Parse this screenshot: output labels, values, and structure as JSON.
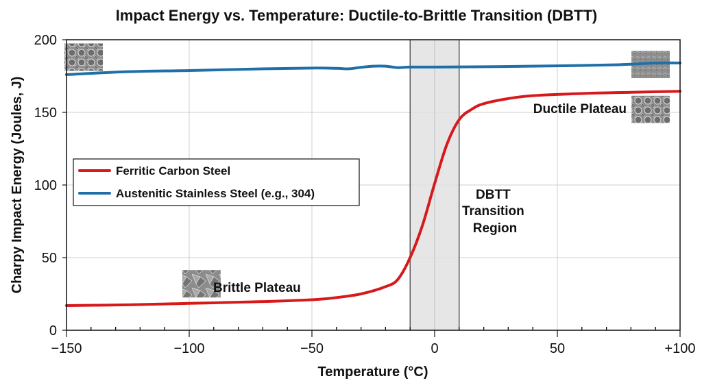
{
  "chart_data": {
    "type": "line",
    "title": "Impact Energy vs. Temperature: Ductile-to-Brittle Transition (DBTT)",
    "xlabel": "Temperature (°C)",
    "ylabel": "Charpy Impact Energy (Joules, J)",
    "xlim": [
      -150,
      100
    ],
    "ylim": [
      0,
      200
    ],
    "xticks": [
      -150,
      -100,
      -50,
      0,
      50,
      100
    ],
    "xtick_labels": [
      "−150",
      "−100",
      "−50",
      "0",
      "50",
      "+100"
    ],
    "yticks": [
      0,
      50,
      100,
      150,
      200
    ],
    "ytick_labels": [
      "0",
      "50",
      "100",
      "150",
      "200"
    ],
    "x_minor_step": 10,
    "grid": true,
    "legend_position": "center-left",
    "series": [
      {
        "name": "Ferritic Carbon Steel",
        "color": "#d7191c",
        "x": [
          -150,
          -125,
          -100,
          -75,
          -50,
          -40,
          -30,
          -20,
          -15,
          -10,
          -5,
          0,
          5,
          10,
          15,
          20,
          30,
          40,
          60,
          80,
          100
        ],
        "y": [
          17,
          17.5,
          18.5,
          19.5,
          21,
          22.5,
          25,
          30,
          35,
          50,
          72,
          101,
          128,
          145,
          152,
          156,
          159.5,
          161.5,
          163,
          163.8,
          164.5
        ]
      },
      {
        "name": "Austenitic Stainless Steel (e.g., 304)",
        "color": "#1f6fa8",
        "x": [
          -150,
          -125,
          -100,
          -75,
          -50,
          -40,
          -35,
          -30,
          -25,
          -20,
          -15,
          -10,
          0,
          25,
          50,
          75,
          90,
          100
        ],
        "y": [
          176,
          178,
          178.8,
          179.8,
          180.5,
          180.3,
          180,
          181,
          181.8,
          181.8,
          180.8,
          181.2,
          181.2,
          181.5,
          182,
          182.8,
          184,
          184
        ]
      }
    ],
    "shaded_region": {
      "x_start": -10,
      "x_end": 10,
      "color": "#e2e2e2",
      "label": [
        "DBTT",
        "Transition",
        "Region"
      ]
    },
    "annotations": [
      {
        "text": "Brittle Plateau",
        "x": -88,
        "y": 29
      },
      {
        "text": "Ductile Plateau",
        "x": 46,
        "y": 152
      },
      {
        "text": "DBTT Transition Region",
        "x": 21,
        "y": 88
      }
    ],
    "images": [
      {
        "name": "fracture-dimple-image",
        "x": -143,
        "y": 188
      },
      {
        "name": "fracture-cleavage-image",
        "x": -95,
        "y": 32
      },
      {
        "name": "fracture-shear-image",
        "x": 88,
        "y": 183
      },
      {
        "name": "fracture-dimple-image-2",
        "x": 88,
        "y": 152
      }
    ]
  }
}
